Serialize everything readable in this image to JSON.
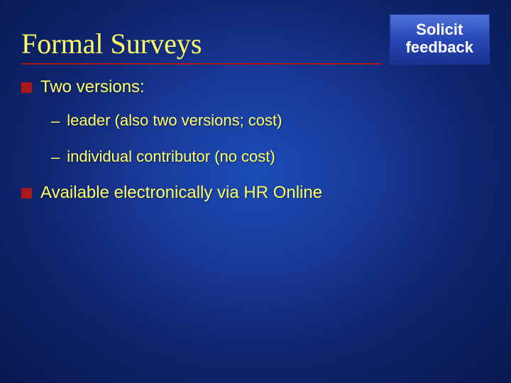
{
  "colors": {
    "background_center": "#1a4db8",
    "background_edge": "#081850",
    "title_color": "#ffff66",
    "text_color": "#ffff66",
    "bullet_color": "#aa1818",
    "divider_color": "#aa1818",
    "badge_gradient_top": "#5070d8",
    "badge_gradient_bottom": "#1a3090",
    "badge_text_color": "#ffffff"
  },
  "typography": {
    "title_font": "Times New Roman",
    "body_font": "Arial",
    "title_size_pt": 30,
    "body_size_pt": 18,
    "sub_size_pt": 16,
    "badge_size_pt": 16
  },
  "title": "Formal Surveys",
  "badge": {
    "line1": "Solicit",
    "line2": "feedback"
  },
  "bullets": [
    {
      "text": "Two versions:",
      "subitems": [
        "leader (also two versions; cost)",
        "individual contributor (no cost)"
      ]
    },
    {
      "text": "Available electronically via HR Online",
      "subitems": []
    }
  ]
}
